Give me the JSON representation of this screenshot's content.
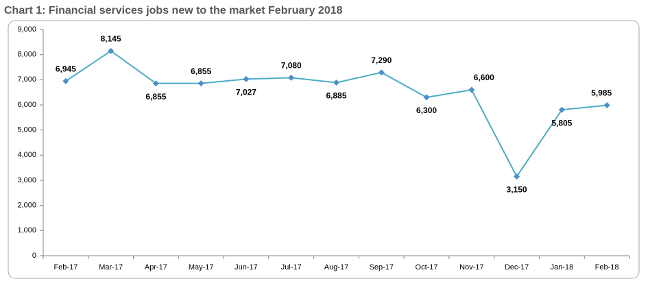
{
  "chart_data": {
    "type": "line",
    "title": "Chart 1: Financial services jobs new to the market February 2018",
    "categories": [
      "Feb-17",
      "Mar-17",
      "Apr-17",
      "May-17",
      "Jun-17",
      "Jul-17",
      "Aug-17",
      "Sep-17",
      "Oct-17",
      "Nov-17",
      "Dec-17",
      "Jan-18",
      "Feb-18"
    ],
    "values": [
      6945,
      8145,
      6855,
      6855,
      7027,
      7080,
      6885,
      7290,
      6300,
      6600,
      3150,
      5805,
      5985
    ],
    "value_labels": [
      "6,945",
      "8,145",
      "6,855",
      "6,855",
      "7,027",
      "7,080",
      "6,885",
      "7,290",
      "6,300",
      "6,600",
      "3,150",
      "5,805",
      "5,985"
    ],
    "color": "#4bacc6",
    "marker_color": "#4a8fc9",
    "ylim": [
      0,
      9000
    ],
    "yticks": [
      0,
      {
        "value": 1000,
        "label": "1,000"
      },
      {
        "value": 2000,
        "label": "2,000"
      },
      {
        "value": 3000,
        "label": "3,000"
      },
      {
        "value": 4000,
        "label": "4,000"
      },
      {
        "value": 5000,
        "label": "5,000"
      },
      {
        "value": 6000,
        "label": "6,000"
      },
      {
        "value": 7000,
        "label": "7,000"
      },
      {
        "value": 8000,
        "label": "8,000"
      },
      {
        "value": 9000,
        "label": "9,000"
      }
    ],
    "grid": false
  }
}
